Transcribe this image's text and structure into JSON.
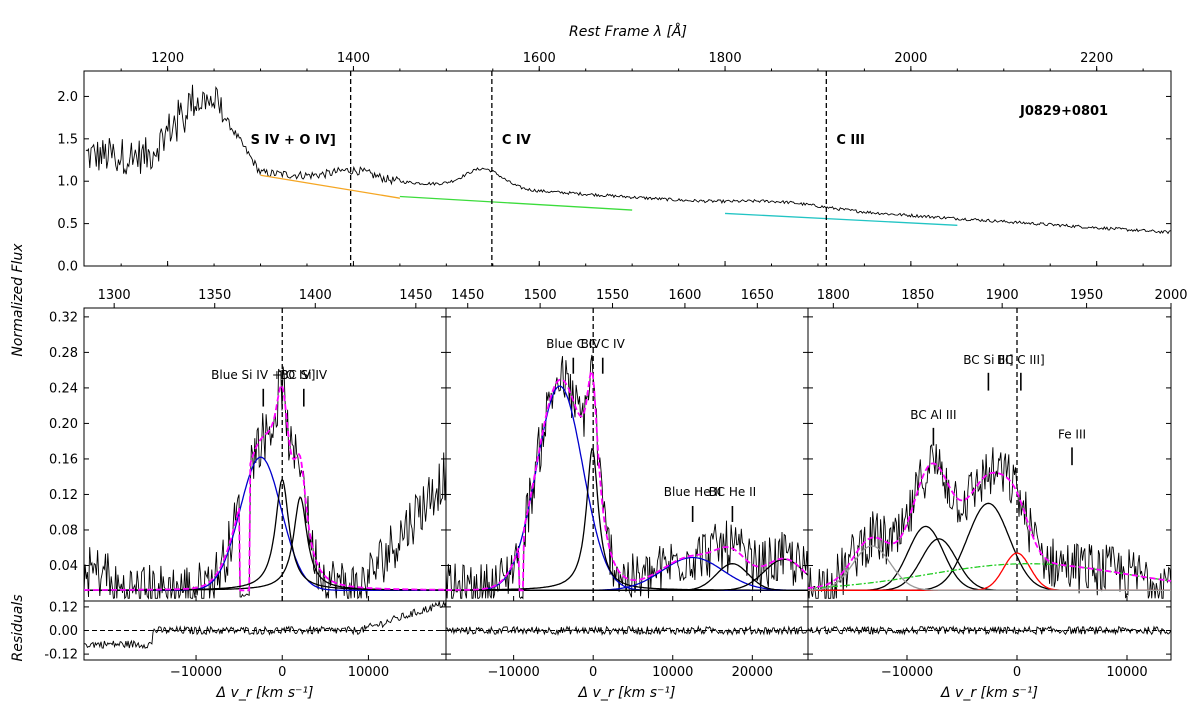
{
  "chart_data": {
    "type": "line",
    "y_shared_label": "Normalized Flux",
    "residual_label": "Residuals",
    "top_panel": {
      "object": "J0829+0801",
      "top_axis_label": "Rest Frame λ [Å]",
      "x_range": [
        1110,
        2280
      ],
      "x_ticks": [
        1200,
        1400,
        1600,
        1800,
        2000,
        2200
      ],
      "y_range": [
        0,
        2.3
      ],
      "y_ticks": [
        "0.0",
        "0.5",
        "1.0",
        "1.5",
        "2.0"
      ],
      "line_markers": [
        {
          "label": "S IV + O IV]",
          "wavelength": 1397
        },
        {
          "label": "C IV",
          "wavelength": 1549
        },
        {
          "label": "C III",
          "wavelength": 1909
        }
      ],
      "continuum_segments": [
        {
          "color": "#f5a623",
          "x": [
            1300,
            1450
          ],
          "y": [
            1.07,
            0.8
          ]
        },
        {
          "color": "#3cdc3c",
          "x": [
            1450,
            1700
          ],
          "y": [
            0.82,
            0.66
          ]
        },
        {
          "color": "#22c4c4",
          "x": [
            1800,
            2050
          ],
          "y": [
            0.62,
            0.48
          ]
        }
      ]
    },
    "velocity_panels": [
      {
        "wavelength_ticks": [
          "1300",
          "1350",
          "1400",
          "1450"
        ],
        "wavelength_range": [
          1285,
          1465
        ],
        "x_range": [
          -23000,
          19000
        ],
        "x_ticks": [
          -10000,
          0,
          10000
        ],
        "x_tick_labels": [
          "−10000",
          "0",
          "10000"
        ],
        "y_range": [
          0,
          0.33
        ],
        "y_ticks": [
          "0.04",
          "0.08",
          "0.12",
          "0.16",
          "0.20",
          "0.24",
          "0.28",
          "0.32"
        ],
        "xlabel": "Δ v_r [km s⁻¹]",
        "annotations": [
          {
            "label": "Blue Si IV + O IV]",
            "x": -2200,
            "y": 0.25,
            "bar_top": 0.239,
            "bar_bottom": 0.219
          },
          {
            "label": "BC Si IV",
            "x": 2500,
            "y": 0.25,
            "bar_top": 0.239,
            "bar_bottom": 0.219
          }
        ],
        "components": [
          {
            "color": "#0000cc",
            "shape": "gauss",
            "amp": 0.15,
            "center": -2500,
            "sigma": 2400
          },
          {
            "color": "#000000",
            "shape": "lorentz",
            "amp": 0.125,
            "center": 0,
            "gamma": 950
          },
          {
            "color": "#000000",
            "shape": "lorentz",
            "amp": 0.105,
            "center": 2100,
            "gamma": 950
          }
        ],
        "dips": [
          [
            -4300,
            -4900
          ],
          [
            -3800,
            -4500
          ]
        ]
      },
      {
        "wavelength_ticks": [
          "1450",
          "1500",
          "1550",
          "1600",
          "1650"
        ],
        "wavelength_range": [
          1435,
          1685
        ],
        "x_range": [
          -18500,
          27000
        ],
        "x_ticks": [
          -10000,
          0,
          10000,
          20000
        ],
        "x_tick_labels": [
          "−10000",
          "0",
          "10000",
          "20000"
        ],
        "y_range": [
          0,
          0.33
        ],
        "y_ticks": [
          "0.04",
          "0.08",
          "0.12",
          "0.16",
          "0.20",
          "0.24",
          "0.28",
          "0.32"
        ],
        "xlabel": "Δ v_r [km s⁻¹]",
        "annotations": [
          {
            "label": "Blue C IV",
            "x": -2500,
            "y": 0.285,
            "bar_top": 0.274,
            "bar_bottom": 0.256
          },
          {
            "label": "BC C IV",
            "x": 1200,
            "y": 0.285,
            "bar_top": 0.274,
            "bar_bottom": 0.256
          },
          {
            "label": "Blue He II",
            "x": 12500,
            "y": 0.118,
            "bar_top": 0.107,
            "bar_bottom": 0.089
          },
          {
            "label": "BC He II",
            "x": 17500,
            "y": 0.118,
            "bar_top": 0.107,
            "bar_bottom": 0.089
          }
        ],
        "components": [
          {
            "color": "#0000cc",
            "shape": "gauss",
            "amp": 0.23,
            "center": -4200,
            "sigma": 2900
          },
          {
            "color": "#000000",
            "shape": "lorentz",
            "amp": 0.16,
            "center": -100,
            "gamma": 900
          },
          {
            "color": "#0000cc",
            "shape": "gauss",
            "amp": 0.037,
            "center": 12500,
            "sigma": 3800
          },
          {
            "color": "#000000",
            "shape": "gauss",
            "amp": 0.03,
            "center": 17500,
            "sigma": 2000
          },
          {
            "color": "#000000",
            "shape": "gauss",
            "amp": 0.035,
            "center": 24000,
            "sigma": 2500
          }
        ],
        "dips": [
          [
            -9400,
            -8700
          ]
        ]
      },
      {
        "wavelength_ticks": [
          "1800",
          "1850",
          "1900",
          "1950",
          "2000"
        ],
        "wavelength_range": [
          1785,
          2000
        ],
        "x_range": [
          -19000,
          14000
        ],
        "x_ticks": [
          -10000,
          0,
          10000
        ],
        "x_tick_labels": [
          "−10000",
          "0",
          "10000"
        ],
        "y_range": [
          0,
          0.33
        ],
        "y_ticks": [
          "0.04",
          "0.08",
          "0.12",
          "0.16",
          "0.20",
          "0.24",
          "0.28",
          "0.32"
        ],
        "xlabel": "Δ v_r [km s⁻¹]",
        "annotations": [
          {
            "label": "BC Al III",
            "x": -7600,
            "y": 0.205,
            "bar_top": 0.195,
            "bar_bottom": 0.175
          },
          {
            "label": "BC Si III]",
            "x": -2600,
            "y": 0.267,
            "bar_top": 0.257,
            "bar_bottom": 0.237
          },
          {
            "label": "BC C III]",
            "x": 350,
            "y": 0.267,
            "bar_top": 0.257,
            "bar_bottom": 0.237
          },
          {
            "label": "Fe III",
            "x": 5000,
            "y": 0.183,
            "bar_top": 0.173,
            "bar_bottom": 0.153
          }
        ],
        "components": [
          {
            "color": "#000000",
            "shape": "gauss",
            "amp": 0.072,
            "center": -8300,
            "sigma": 1600
          },
          {
            "color": "#000000",
            "shape": "gauss",
            "amp": 0.058,
            "center": -7100,
            "sigma": 1600
          },
          {
            "color": "#000000",
            "shape": "gauss",
            "amp": 0.098,
            "center": -2600,
            "sigma": 1900
          },
          {
            "color": "#ff0000",
            "shape": "gauss",
            "amp": 0.042,
            "center": 0,
            "sigma": 1200
          },
          {
            "color": "#999999",
            "shape": "gauss",
            "amp": 0.05,
            "center": -13200,
            "sigma": 1700
          },
          {
            "color": "#22cc22",
            "shape": "gauss",
            "amp": 0.03,
            "center": 1000,
            "sigma": 9000,
            "dash": true
          }
        ],
        "dips": []
      }
    ],
    "residuals": {
      "y_range": [
        -0.15,
        0.15
      ],
      "y_ticks": [
        "0.12",
        "0.00",
        "-0.12"
      ]
    }
  }
}
